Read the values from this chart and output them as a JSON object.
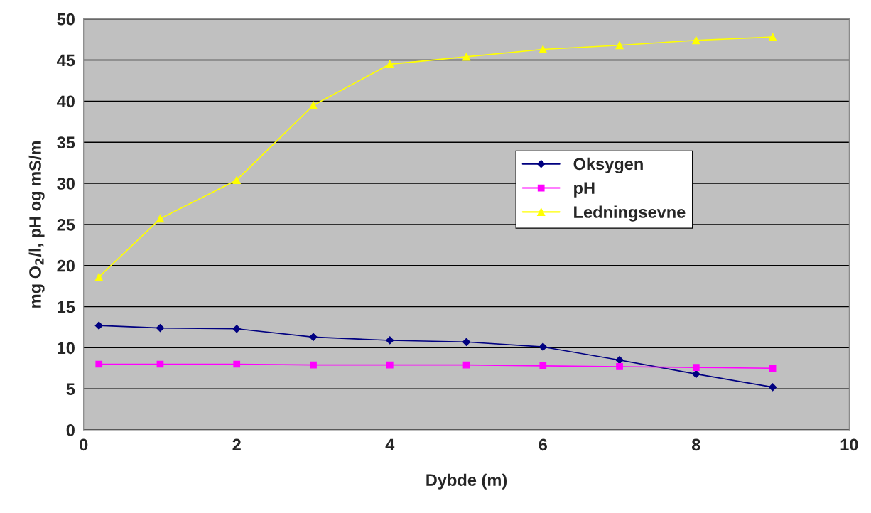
{
  "chart_data": {
    "type": "line",
    "xlabel": "Dybde (m)",
    "ylabel": "mg O$_{2}$/l, pH og mS/m",
    "x": [
      0.2,
      1,
      2,
      3,
      4,
      5,
      6,
      7,
      8,
      9
    ],
    "series": [
      {
        "name": "Oksygen",
        "color": "#000080",
        "marker": "diamond",
        "values": [
          12.7,
          12.4,
          12.3,
          11.3,
          10.9,
          10.7,
          10.1,
          8.5,
          6.8,
          5.2
        ]
      },
      {
        "name": "pH",
        "color": "#ff00ff",
        "marker": "square",
        "values": [
          8.0,
          8.0,
          8.0,
          7.9,
          7.9,
          7.9,
          7.8,
          7.7,
          7.6,
          7.5
        ]
      },
      {
        "name": "Ledningsevne",
        "color": "#ffff00",
        "marker": "triangle",
        "values": [
          18.6,
          25.7,
          30.4,
          39.5,
          44.5,
          45.4,
          46.3,
          46.8,
          47.4,
          47.8
        ]
      }
    ],
    "xlim": [
      0,
      10
    ],
    "xticks": [
      0,
      2,
      4,
      6,
      8,
      10
    ],
    "ylim": [
      0,
      50
    ],
    "yticks": [
      0,
      5,
      10,
      15,
      20,
      25,
      30,
      35,
      40,
      45,
      50
    ],
    "grid": "y",
    "legend": "center",
    "line_style": "solid"
  }
}
